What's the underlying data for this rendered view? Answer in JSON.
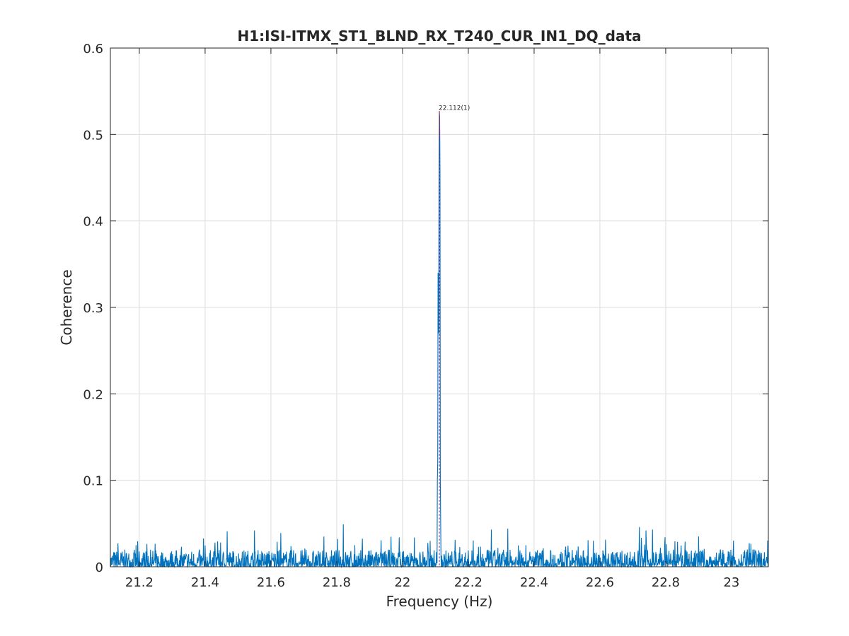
{
  "chart_data": {
    "type": "line",
    "title": "H1:ISI-ITMX_ST1_BLND_RX_T240_CUR_IN1_DQ_data",
    "xlabel": "Frequency (Hz)",
    "ylabel": "Coherence",
    "xlim": [
      21.112,
      23.112
    ],
    "ylim": [
      0,
      0.6
    ],
    "grid": true,
    "x_ticks": [
      21.2,
      21.4,
      21.6,
      21.8,
      22,
      22.2,
      22.4,
      22.6,
      22.8,
      23
    ],
    "x_tick_labels": [
      "21.2",
      "21.4",
      "21.6",
      "21.8",
      "22",
      "22.2",
      "22.4",
      "22.6",
      "22.8",
      "23"
    ],
    "y_ticks": [
      0,
      0.1,
      0.2,
      0.3,
      0.4,
      0.5,
      0.6
    ],
    "y_tick_labels": [
      "0",
      "0.1",
      "0.2",
      "0.3",
      "0.4",
      "0.5",
      "0.6"
    ],
    "series_color": "#0072bd",
    "noise_floor": {
      "x_start": 21.112,
      "x_end": 23.112,
      "n_points": 2001,
      "typical_max": 0.02,
      "occasional_max": 0.045
    },
    "noise_spikes": [
      {
        "x": 21.135,
        "y": 0.027
      },
      {
        "x": 21.19,
        "y": 0.025
      },
      {
        "x": 21.43,
        "y": 0.028
      },
      {
        "x": 21.467,
        "y": 0.041
      },
      {
        "x": 21.55,
        "y": 0.042
      },
      {
        "x": 21.63,
        "y": 0.039
      },
      {
        "x": 21.82,
        "y": 0.049
      },
      {
        "x": 21.99,
        "y": 0.034
      },
      {
        "x": 22.27,
        "y": 0.043
      },
      {
        "x": 22.32,
        "y": 0.044
      },
      {
        "x": 22.58,
        "y": 0.03
      },
      {
        "x": 22.72,
        "y": 0.046
      },
      {
        "x": 22.74,
        "y": 0.042
      },
      {
        "x": 22.76,
        "y": 0.043
      },
      {
        "x": 22.9,
        "y": 0.035
      }
    ],
    "peak_points": [
      {
        "x": 22.106,
        "y": 0.1
      },
      {
        "x": 22.107,
        "y": 0.12
      },
      {
        "x": 22.108,
        "y": 0.34
      },
      {
        "x": 22.109,
        "y": 0.33
      },
      {
        "x": 22.11,
        "y": 0.27
      },
      {
        "x": 22.111,
        "y": 0.46
      },
      {
        "x": 22.112,
        "y": 0.527
      },
      {
        "x": 22.113,
        "y": 0.52
      },
      {
        "x": 22.114,
        "y": 0.455
      },
      {
        "x": 22.115,
        "y": 0.1
      },
      {
        "x": 22.116,
        "y": 0.05
      }
    ],
    "annotation": {
      "text": "22.112(1)",
      "x": 22.112,
      "y": 0.527,
      "marker_color": "#ff0000",
      "line_color": "#7a2a8a"
    }
  }
}
